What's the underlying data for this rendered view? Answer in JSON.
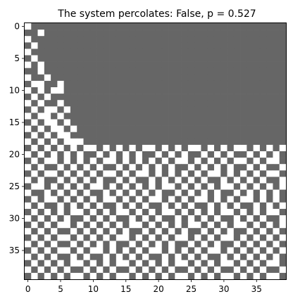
{
  "chart_data": {
    "type": "heatmap",
    "title": "The system percolates: False, p = 0.527",
    "xlabel": "",
    "ylabel": "",
    "grid": false,
    "legend": "none",
    "n": 40,
    "xlim": [
      -0.5,
      39.5
    ],
    "ylim": [
      39.5,
      -0.5
    ],
    "xticks": [
      0,
      5,
      10,
      15,
      20,
      25,
      30,
      35
    ],
    "yticks": [
      0,
      5,
      10,
      15,
      20,
      25,
      30,
      35
    ],
    "xtick_labels": [
      "0",
      "5",
      "10",
      "15",
      "20",
      "25",
      "30",
      "35"
    ],
    "ytick_labels": [
      "0",
      "5",
      "10",
      "15",
      "20",
      "25",
      "30",
      "35"
    ],
    "colors": {
      "blocked": "#666666",
      "open": "#ffffff",
      "filled": "#00ced1"
    },
    "grid_rows": [
      "1000000000000000000000000000000000000000",
      "0010000000000000000000000000000000000000",
      "1000000000000000000000000000000000000000",
      "0100000000000000000000000000000000000000",
      "1000000000000000000000000000000000000000",
      "0100000000000000000000000000000000000000",
      "1010000000000000000000000000000000000000",
      "0010000000000000000000000000000000000000",
      "1001000000000000000000000000000000000000",
      "0110010000000000000000000000000000000000",
      "1010110000000000000000000000000000000000",
      "0101000000000000000000000000000000000000",
      "1010010000000000000000000000000000000000",
      "0101101000000000000000000000000000000000",
      "1011010000000000000000000000000000000000",
      "0101101000000000000000000000000000000000",
      "1010110100000000000000000000000000000000",
      "0101011000000000000000000000000000000000",
      "1010101110000000000000000000000000000000",
      "0101010101101010101101010110101011010101",
      "1010101010010101010010101001010100101010",
      "0101101010101101010101011010101011010110",
      "1010010101010010101010100101010100101001",
      "0101101010101101011010101010110101010110",
      "1010010101010010100101010101001010101001",
      "0110101010110101010101101010101101010101",
      "1001010101001010101010010101010010101010",
      "0101101010101101010110101011010101101010",
      "1010010101010010101001010100101010010101",
      "0101010110101011010101101010101101010110",
      "1010101001010100101010010101010010101001",
      "0101011010101010110101010110101011010101",
      "1010100101010101001010101001010100101010",
      "0101011010101011010101011010101101010101",
      "1010100101010100101010100101010010101010",
      "0101011010110101010110101010110101010101",
      "1010100101001010101001010101001010101010",
      "0101010110101011010101011010101101010110",
      "1010101001010100101010100101010010101001",
      "0101010110101011010101011010101101010110"
    ],
    "fill_rows": [
      "0000000000000000000000000000000000000000",
      "0000000000000000000000000000000000000000",
      "0000000000000000000000000000000000000000",
      "0000000000000000000000000000000000000000",
      "0000000000000000000000000000000000000000",
      "0000000000000000000000000000000000000000",
      "0000000000000000000000000000000000000000",
      "0000000000000000000000000000000000000000",
      "0000000000000000000000000000000000000000",
      "0000000000000000000000000000000000000000",
      "0000000000000000000000000000000000000000",
      "0000000000000000000000000000000000000000",
      "0000000000000000000000000000000000000000",
      "0000000000000000000000000000000000000000",
      "0000000000000000000000000000000000000000",
      "0000000000000000000000000000000000000000",
      "0000000000000000000000000000000000000000",
      "0000000000000000000000000000000000000000",
      "0000000000000000000000000000000000000000",
      "0000000000000000000000000000000000000000",
      "0000000000000000000000000000000000000000",
      "0000000000000000000000000000000000000000",
      "0000000000000000000000000000000000000000",
      "0000000000000000000000000000000000000000",
      "0000000000000000000000000000000000000000",
      "0000000000000000000000000000000000000000",
      "0000000000000000000000000000000000000000",
      "0000000000000000000000000000000000000000",
      "0000000000000000000000000000000000000000",
      "0000000000000000000000000000000000000000",
      "0000000000000000000000000000000000000000",
      "0000000000000000000000000000000000000000",
      "0000000000000000000000000000000000000000",
      "0000000000000000000000000000000000000000",
      "0000000000000000000000000000000000000000",
      "0000000000000000000000000000000000000000",
      "0000000000000000000000000000000000000000",
      "0000000000000000000000000000000000000000",
      "0000000000000000000000000000000000000000",
      "0000000000000000000000000000000000000000"
    ]
  }
}
